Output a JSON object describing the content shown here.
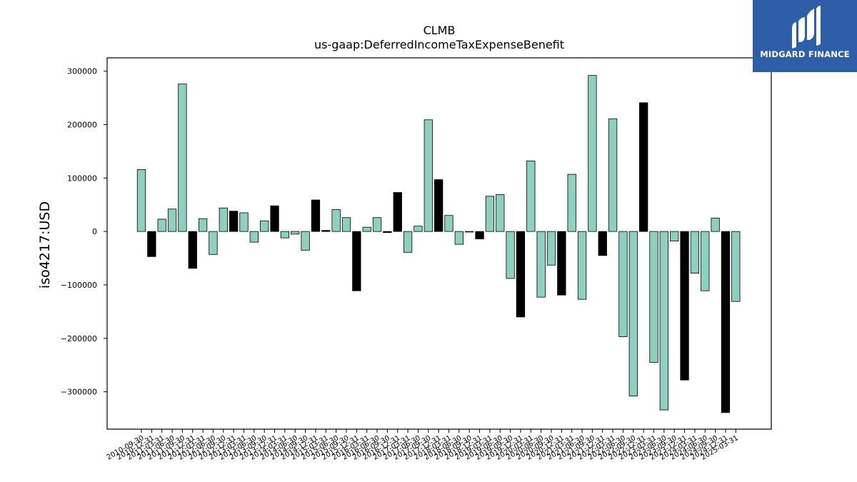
{
  "chart_data": {
    "type": "bar",
    "title": "CLMB",
    "subtitle": "us-gaap:DeferredIncomeTaxExpenseBenefit",
    "ylabel": "iso4217:USD",
    "xlabel": "",
    "ylim": [
      -370000,
      325000
    ],
    "yticks": [
      300000,
      200000,
      100000,
      0,
      -100000,
      -200000,
      -300000
    ],
    "ytick_labels": [
      "300000",
      "200000",
      "100000",
      "0",
      "−100000",
      "−200000",
      "−300000"
    ],
    "grid": false,
    "categories": [
      "2010-09-30",
      "2010-12-31",
      "2011-03-31",
      "2011-06-30",
      "2011-09-30",
      "2011-12-31",
      "2012-03-31",
      "2012-06-30",
      "2012-09-30",
      "2012-12-31",
      "2013-03-31",
      "2013-06-30",
      "2013-09-30",
      "2013-12-31",
      "2014-03-31",
      "2014-06-30",
      "2014-09-30",
      "2014-12-31",
      "2015-03-31",
      "2015-06-30",
      "2015-09-30",
      "2015-12-31",
      "2016-03-31",
      "2016-06-30",
      "2016-09-30",
      "2016-12-31",
      "2017-03-31",
      "2017-06-30",
      "2017-09-30",
      "2017-12-31",
      "2018-03-31",
      "2018-06-30",
      "2018-09-30",
      "2018-12-31",
      "2019-03-31",
      "2019-06-30",
      "2019-09-30",
      "2019-12-31",
      "2020-03-31",
      "2020-06-30",
      "2020-09-30",
      "2020-12-31",
      "2021-03-31",
      "2021-06-30",
      "2021-09-30",
      "2021-12-31",
      "2022-03-31",
      "2022-06-30",
      "2022-09-30",
      "2022-12-31",
      "2023-03-31",
      "2023-06-30",
      "2023-09-30",
      "2023-12-31",
      "2024-03-31",
      "2024-06-30",
      "2024-09-30",
      "2024-12-31",
      "2025-03-31"
    ],
    "values": [
      116000,
      -47000,
      23000,
      42000,
      276000,
      -69000,
      24000,
      -43000,
      44000,
      38000,
      35000,
      -20000,
      20000,
      48000,
      -12000,
      -5000,
      -35000,
      59000,
      2000,
      41000,
      26000,
      -111000,
      8000,
      26000,
      -2000,
      73000,
      -39000,
      10000,
      209000,
      97000,
      30000,
      -24000,
      0,
      -14000,
      66000,
      69000,
      -88000,
      -160000,
      132000,
      -123000,
      -63000,
      -119000,
      107000,
      -127000,
      292000,
      -45000,
      211000,
      -197000,
      -308000,
      241000,
      -245000,
      -334000,
      -18000,
      -278000,
      -78000,
      -111000,
      25000,
      -339000,
      -131000
    ],
    "bar_colors": [
      "#8ecfc0",
      "#000000",
      "#8ecfc0",
      "#8ecfc0",
      "#8ecfc0",
      "#000000",
      "#8ecfc0",
      "#8ecfc0",
      "#8ecfc0",
      "#000000",
      "#8ecfc0",
      "#8ecfc0",
      "#8ecfc0",
      "#000000",
      "#8ecfc0",
      "#8ecfc0",
      "#8ecfc0",
      "#000000",
      "#000000",
      "#8ecfc0",
      "#8ecfc0",
      "#000000",
      "#8ecfc0",
      "#8ecfc0",
      "#000000",
      "#000000",
      "#8ecfc0",
      "#8ecfc0",
      "#8ecfc0",
      "#000000",
      "#8ecfc0",
      "#8ecfc0",
      "#8ecfc0",
      "#000000",
      "#8ecfc0",
      "#8ecfc0",
      "#8ecfc0",
      "#000000",
      "#8ecfc0",
      "#8ecfc0",
      "#8ecfc0",
      "#000000",
      "#8ecfc0",
      "#8ecfc0",
      "#8ecfc0",
      "#000000",
      "#8ecfc0",
      "#8ecfc0",
      "#8ecfc0",
      "#000000",
      "#8ecfc0",
      "#8ecfc0",
      "#8ecfc0",
      "#000000",
      "#8ecfc0",
      "#8ecfc0",
      "#8ecfc0",
      "#000000",
      "#8ecfc0"
    ]
  },
  "logo": {
    "text": "MIDGARD FINANCE",
    "icon": "midgard-finance-logo-icon",
    "background": "#2f5ea8"
  }
}
